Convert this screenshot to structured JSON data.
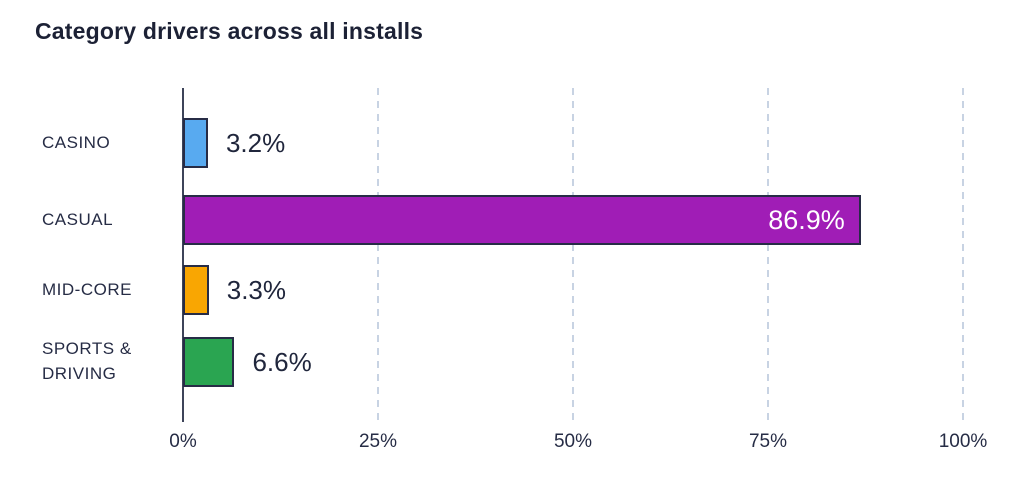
{
  "title": "Category drivers across all installs",
  "colors": {
    "background": "#ffffff",
    "title_text": "#1c2135",
    "label_text": "#262c45",
    "value_text": "#20263c",
    "value_text_inside": "#ffffff",
    "axis_line": "#3d4459",
    "gridline": "#c8d3e3",
    "bar_border": "#272c46"
  },
  "chart_data": {
    "type": "bar",
    "orientation": "horizontal",
    "title": "Category drivers across all installs",
    "categories": [
      "CASINO",
      "CASUAL",
      "MID-CORE",
      "SPORTS & DRIVING"
    ],
    "values": [
      3.2,
      86.9,
      3.3,
      6.6
    ],
    "value_labels": [
      "3.2%",
      "86.9%",
      "3.3%",
      "6.6%"
    ],
    "value_label_position": [
      "outside",
      "inside",
      "outside",
      "outside"
    ],
    "bar_colors": [
      "#58aaf0",
      "#a01db6",
      "#f9a602",
      "#2aa551"
    ],
    "xlabel": "",
    "ylabel": "",
    "xlim": [
      0,
      100
    ],
    "x_ticks": [
      "0%",
      "25%",
      "50%",
      "75%",
      "100%"
    ],
    "x_tick_values": [
      0,
      25,
      50,
      75,
      100
    ],
    "grid": "dashed-vertical",
    "legend": "none"
  }
}
